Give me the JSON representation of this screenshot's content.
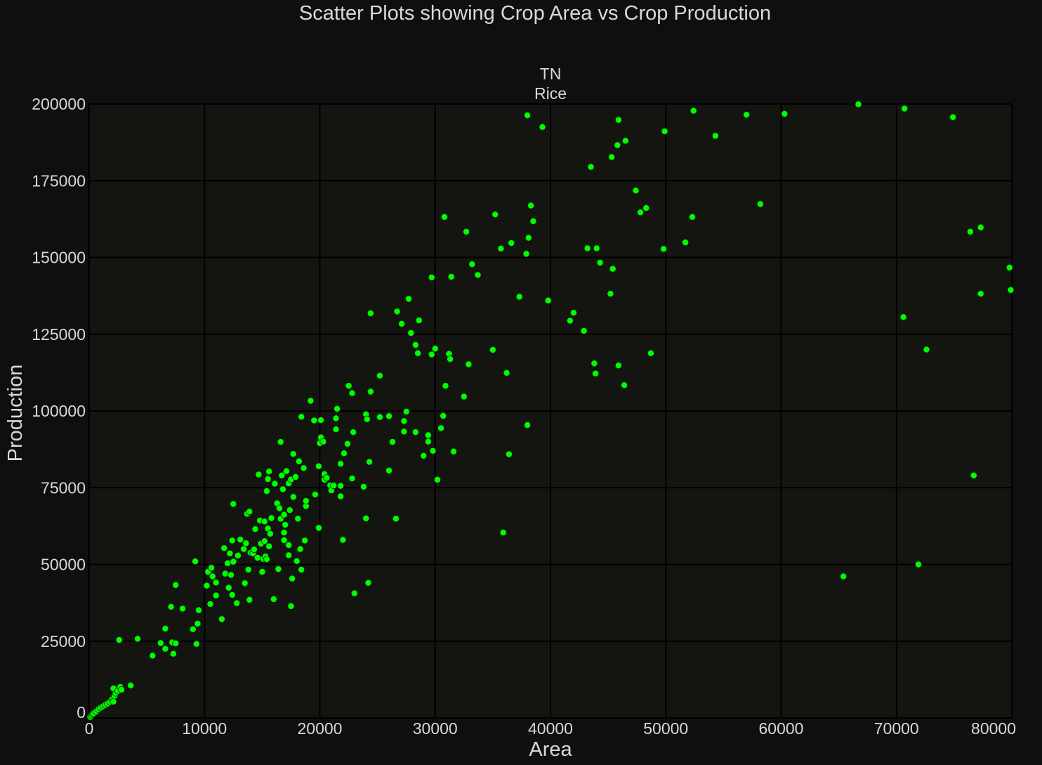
{
  "colors": {
    "page_bg": "#0f0f0f",
    "plot_bg": "#141410",
    "grid": "#000000",
    "text": "#d9d9d9",
    "point": "#00ff00"
  },
  "chart_data": {
    "type": "scatter",
    "title": "Scatter Plots showing Crop Area vs Crop Production",
    "subtitle_lines": [
      "TN",
      "Rice"
    ],
    "xlabel": "Area",
    "ylabel": "Production",
    "xlim": [
      0,
      80000
    ],
    "ylim": [
      0,
      200000
    ],
    "xticks": [
      "0",
      "10000",
      "20000",
      "30000",
      "40000",
      "50000",
      "60000",
      "70000",
      "80000"
    ],
    "yticks": [
      "0",
      "25000",
      "50000",
      "75000",
      "100000",
      "125000",
      "150000",
      "175000",
      "200000"
    ],
    "grid": true,
    "legend": "none",
    "series": [
      {
        "points": [
          [
            100,
            300
          ],
          [
            200,
            700
          ],
          [
            300,
            1200
          ],
          [
            400,
            1500
          ],
          [
            600,
            2100
          ],
          [
            800,
            2800
          ],
          [
            1000,
            3300
          ],
          [
            1200,
            3800
          ],
          [
            1400,
            4200
          ],
          [
            1600,
            4700
          ],
          [
            1800,
            5200
          ],
          [
            2000,
            6100
          ],
          [
            2100,
            5300
          ],
          [
            2200,
            7200
          ],
          [
            2300,
            8100
          ],
          [
            2100,
            9600
          ],
          [
            2500,
            8800
          ],
          [
            2700,
            10100
          ],
          [
            2800,
            9200
          ],
          [
            2600,
            25400
          ],
          [
            3600,
            10600
          ],
          [
            4200,
            25800
          ],
          [
            5500,
            20300
          ],
          [
            6200,
            24400
          ],
          [
            6600,
            29100
          ],
          [
            6600,
            22500
          ],
          [
            7100,
            36200
          ],
          [
            7200,
            24600
          ],
          [
            7300,
            20900
          ],
          [
            7500,
            43300
          ],
          [
            7500,
            24300
          ],
          [
            8100,
            35600
          ],
          [
            9000,
            28900
          ],
          [
            9200,
            51000
          ],
          [
            9300,
            24100
          ],
          [
            9400,
            30700
          ],
          [
            9500,
            35100
          ],
          [
            10200,
            43100
          ],
          [
            10300,
            47600
          ],
          [
            10500,
            37100
          ],
          [
            10600,
            48900
          ],
          [
            10700,
            46100
          ],
          [
            11000,
            44100
          ],
          [
            11000,
            39900
          ],
          [
            11500,
            32200
          ],
          [
            11700,
            55300
          ],
          [
            11800,
            47000
          ],
          [
            12000,
            50400
          ],
          [
            12100,
            42400
          ],
          [
            12200,
            53600
          ],
          [
            12300,
            46600
          ],
          [
            12400,
            57800
          ],
          [
            12400,
            40100
          ],
          [
            12500,
            50900
          ],
          [
            12500,
            69700
          ],
          [
            12800,
            37400
          ],
          [
            12900,
            52900
          ],
          [
            13100,
            58100
          ],
          [
            13400,
            55000
          ],
          [
            13500,
            43900
          ],
          [
            13600,
            56900
          ],
          [
            13700,
            66500
          ],
          [
            13800,
            48300
          ],
          [
            13900,
            38500
          ],
          [
            13900,
            67200
          ],
          [
            14000,
            53800
          ],
          [
            14200,
            53600
          ],
          [
            14300,
            54900
          ],
          [
            14400,
            61500
          ],
          [
            14600,
            52200
          ],
          [
            14700,
            79300
          ],
          [
            14800,
            64300
          ],
          [
            14900,
            56800
          ],
          [
            15000,
            47600
          ],
          [
            15100,
            51800
          ],
          [
            15200,
            64000
          ],
          [
            15200,
            57600
          ],
          [
            15300,
            52600
          ],
          [
            15400,
            73900
          ],
          [
            15400,
            51700
          ],
          [
            15500,
            77800
          ],
          [
            15500,
            61700
          ],
          [
            15600,
            55900
          ],
          [
            15600,
            80300
          ],
          [
            15700,
            60000
          ],
          [
            15800,
            65100
          ],
          [
            16000,
            38700
          ],
          [
            16100,
            76300
          ],
          [
            16300,
            69900
          ],
          [
            16400,
            48500
          ],
          [
            16500,
            68300
          ],
          [
            16600,
            64900
          ],
          [
            16600,
            89900
          ],
          [
            16700,
            79000
          ],
          [
            16800,
            74500
          ],
          [
            16900,
            66200
          ],
          [
            16900,
            60400
          ],
          [
            16900,
            57900
          ],
          [
            17000,
            62900
          ],
          [
            17100,
            80400
          ],
          [
            17300,
            56300
          ],
          [
            17300,
            53000
          ],
          [
            17300,
            76400
          ],
          [
            17400,
            67700
          ],
          [
            17500,
            77700
          ],
          [
            17500,
            36400
          ],
          [
            17600,
            45400
          ],
          [
            17700,
            86000
          ],
          [
            17700,
            72000
          ],
          [
            17900,
            78500
          ],
          [
            18000,
            51100
          ],
          [
            18100,
            64900
          ],
          [
            18200,
            83600
          ],
          [
            18300,
            55000
          ],
          [
            18400,
            98100
          ],
          [
            18400,
            48300
          ],
          [
            18600,
            81400
          ],
          [
            18700,
            57800
          ],
          [
            18800,
            69000
          ],
          [
            18800,
            70700
          ],
          [
            19200,
            103300
          ],
          [
            19500,
            96900
          ],
          [
            19600,
            72800
          ],
          [
            19900,
            82000
          ],
          [
            19900,
            61900
          ],
          [
            20000,
            89500
          ],
          [
            20100,
            97000
          ],
          [
            20100,
            91400
          ],
          [
            20300,
            90000
          ],
          [
            20400,
            77600
          ],
          [
            20400,
            79400
          ],
          [
            20600,
            78200
          ],
          [
            20900,
            75800
          ],
          [
            21000,
            74100
          ],
          [
            21200,
            75700
          ],
          [
            21400,
            94000
          ],
          [
            21400,
            97600
          ],
          [
            21500,
            100700
          ],
          [
            21800,
            82800
          ],
          [
            21800,
            75600
          ],
          [
            21800,
            72200
          ],
          [
            22000,
            58000
          ],
          [
            22100,
            86200
          ],
          [
            22400,
            89300
          ],
          [
            22500,
            108200
          ],
          [
            22800,
            105800
          ],
          [
            22800,
            78000
          ],
          [
            22900,
            93100
          ],
          [
            23000,
            40600
          ],
          [
            23800,
            75300
          ],
          [
            24000,
            65000
          ],
          [
            24000,
            98900
          ],
          [
            24100,
            97300
          ],
          [
            24200,
            44000
          ],
          [
            24300,
            83400
          ],
          [
            24400,
            131800
          ],
          [
            24400,
            106300
          ],
          [
            25200,
            111500
          ],
          [
            25200,
            98000
          ],
          [
            26000,
            80600
          ],
          [
            26000,
            98300
          ],
          [
            26300,
            89900
          ],
          [
            26600,
            64900
          ],
          [
            26700,
            132400
          ],
          [
            27100,
            128400
          ],
          [
            27300,
            96700
          ],
          [
            27300,
            93300
          ],
          [
            27500,
            99800
          ],
          [
            27700,
            136500
          ],
          [
            27900,
            125400
          ],
          [
            28300,
            93100
          ],
          [
            28300,
            121500
          ],
          [
            28500,
            118800
          ],
          [
            28600,
            129500
          ],
          [
            29000,
            85400
          ],
          [
            29400,
            92100
          ],
          [
            29400,
            90000
          ],
          [
            29700,
            143500
          ],
          [
            29700,
            118400
          ],
          [
            29800,
            87000
          ],
          [
            30000,
            120300
          ],
          [
            30200,
            77600
          ],
          [
            30500,
            94400
          ],
          [
            30700,
            98400
          ],
          [
            30800,
            163200
          ],
          [
            30900,
            108200
          ],
          [
            31200,
            118600
          ],
          [
            31300,
            116900
          ],
          [
            31400,
            143700
          ],
          [
            31600,
            86800
          ],
          [
            32500,
            104700
          ],
          [
            32700,
            158400
          ],
          [
            32900,
            115200
          ],
          [
            33200,
            147800
          ],
          [
            33700,
            144300
          ],
          [
            35000,
            119900
          ],
          [
            35200,
            164000
          ],
          [
            35700,
            152900
          ],
          [
            35900,
            60400
          ],
          [
            36200,
            112400
          ],
          [
            36400,
            85900
          ],
          [
            36600,
            154700
          ],
          [
            37300,
            137200
          ],
          [
            37900,
            151200
          ],
          [
            38000,
            95400
          ],
          [
            38000,
            196300
          ],
          [
            38100,
            156400
          ],
          [
            38300,
            166900
          ],
          [
            38500,
            161800
          ],
          [
            39300,
            192500
          ],
          [
            39800,
            136000
          ],
          [
            41700,
            129400
          ],
          [
            42000,
            132000
          ],
          [
            42900,
            126100
          ],
          [
            43200,
            153000
          ],
          [
            43500,
            179500
          ],
          [
            43800,
            115500
          ],
          [
            43900,
            112200
          ],
          [
            44000,
            153000
          ],
          [
            44300,
            148300
          ],
          [
            45200,
            138200
          ],
          [
            45300,
            182700
          ],
          [
            45400,
            146300
          ],
          [
            45800,
            186600
          ],
          [
            45900,
            194800
          ],
          [
            45900,
            114800
          ],
          [
            46400,
            108400
          ],
          [
            46500,
            188000
          ],
          [
            47400,
            171800
          ],
          [
            47800,
            164700
          ],
          [
            48300,
            166100
          ],
          [
            48700,
            118800
          ],
          [
            49800,
            152800
          ],
          [
            49900,
            191100
          ],
          [
            51700,
            154900
          ],
          [
            52300,
            163200
          ],
          [
            52400,
            197800
          ],
          [
            54300,
            189600
          ],
          [
            57000,
            196500
          ],
          [
            58200,
            167400
          ],
          [
            60300,
            196800
          ],
          [
            65400,
            46100
          ],
          [
            66700,
            199900
          ],
          [
            70600,
            130600
          ],
          [
            70700,
            198500
          ],
          [
            71900,
            50000
          ],
          [
            72600,
            120000
          ],
          [
            74900,
            195700
          ],
          [
            76400,
            158400
          ],
          [
            76700,
            79000
          ],
          [
            77300,
            138200
          ],
          [
            77300,
            159800
          ],
          [
            79800,
            146700
          ],
          [
            79900,
            139400
          ]
        ]
      }
    ]
  }
}
